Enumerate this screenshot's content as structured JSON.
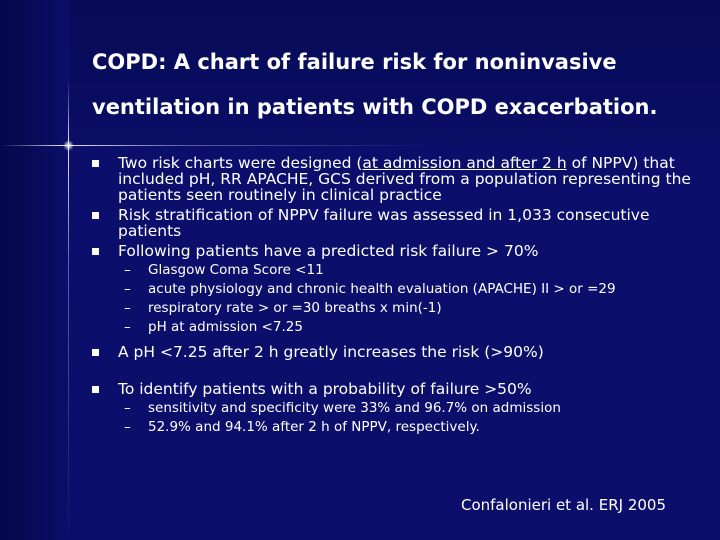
{
  "slide": {
    "title_line1": "COPD: A chart of failure risk for noninvasive",
    "title_line2": "ventilation in patients with COPD exacerbation.",
    "bullets": [
      {
        "pre": "Two risk charts were designed (",
        "underlined": "at admission and after 2 h",
        "post": " of NPPV) that included pH, RR APACHE, GCS derived from a population representing the patients seen routinely in clinical practice"
      },
      {
        "text": "Risk stratification of NPPV failure was assessed in 1,033 consecutive patients"
      },
      {
        "text": "Following patients have a predicted risk failure > 70%",
        "subitems": [
          "Glasgow Coma Score <11",
          "acute physiology and chronic health evaluation (APACHE) II > or =29",
          "respiratory rate > or =30 breaths x min(-1)",
          "pH at admission <7.25"
        ]
      },
      {
        "text": "A pH <7.25 after 2 h greatly increases the risk (>90%)"
      },
      {
        "text": "To identify patients with a probability of failure >50%",
        "subitems": [
          "sensitivity and specificity were 33% and 96.7% on admission",
          "52.9% and 94.1% after 2 h of NPPV, respectively."
        ]
      }
    ],
    "dash": "–",
    "citation": "Confalonieri et al. ERJ 2005"
  }
}
